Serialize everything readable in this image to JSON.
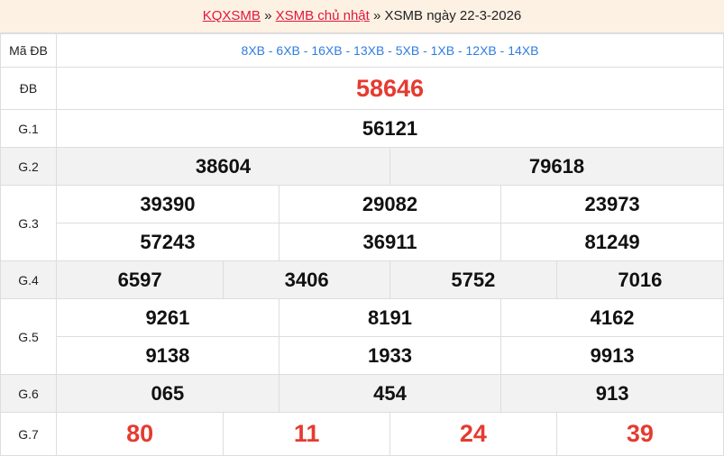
{
  "breadcrumb": {
    "home": "KQXSMB",
    "sep": "»",
    "section": "XSMB chủ nhật",
    "current": "XSMB ngày 22-3-2026"
  },
  "colors": {
    "accent_red": "#e53b30",
    "link_red": "#e0173a",
    "code_blue": "#2f7de1",
    "header_bg": "#fdf1e4"
  },
  "rows": {
    "ma_db": {
      "label": "Mã ĐB",
      "value": "8XB - 6XB - 16XB - 13XB - 5XB - 1XB - 12XB - 14XB"
    },
    "db": {
      "label": "ĐB",
      "values": [
        "58646"
      ]
    },
    "g1": {
      "label": "G.1",
      "values": [
        "56121"
      ]
    },
    "g2": {
      "label": "G.2",
      "values": [
        "38604",
        "79618"
      ]
    },
    "g3": {
      "label": "G.3",
      "values": [
        "39390",
        "29082",
        "23973",
        "57243",
        "36911",
        "81249"
      ]
    },
    "g4": {
      "label": "G.4",
      "values": [
        "6597",
        "3406",
        "5752",
        "7016"
      ]
    },
    "g5": {
      "label": "G.5",
      "values": [
        "9261",
        "8191",
        "4162",
        "9138",
        "1933",
        "9913"
      ]
    },
    "g6": {
      "label": "G.6",
      "values": [
        "065",
        "454",
        "913"
      ]
    },
    "g7": {
      "label": "G.7",
      "values": [
        "80",
        "11",
        "24",
        "39"
      ]
    }
  }
}
